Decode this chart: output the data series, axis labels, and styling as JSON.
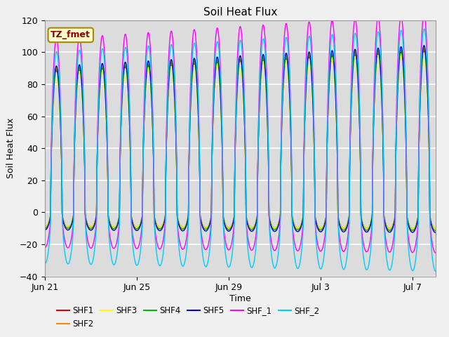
{
  "title": "Soil Heat Flux",
  "xlabel": "Time",
  "ylabel": "Soil Heat Flux",
  "annotation_text": "TZ_fmet",
  "ylim": [
    -40,
    120
  ],
  "fig_bg_color": "#f0f0f0",
  "plot_bg_color": "#dcdcdc",
  "grid_color": "white",
  "series": [
    {
      "name": "SHF1",
      "color": "#dd0000",
      "day_amp": 88,
      "night_amp": 9,
      "phase": 0.0
    },
    {
      "name": "SHF2",
      "color": "#ff8800",
      "day_amp": 90,
      "night_amp": 10,
      "phase": 0.01
    },
    {
      "name": "SHF3",
      "color": "#ffff00",
      "day_amp": 87,
      "night_amp": 9,
      "phase": 0.02
    },
    {
      "name": "SHF4",
      "color": "#00bb00",
      "day_amp": 89,
      "night_amp": 10,
      "phase": 0.015
    },
    {
      "name": "SHF5",
      "color": "#0000cc",
      "day_amp": 91,
      "night_amp": 11,
      "phase": 0.005
    },
    {
      "name": "SHF_1",
      "color": "#ff00ff",
      "day_amp": 108,
      "night_amp": 22,
      "phase": 0.0
    },
    {
      "name": "SHF_2",
      "color": "#00ccff",
      "day_amp": 100,
      "night_amp": 32,
      "phase": -0.03
    }
  ],
  "tick_labels": [
    "Jun 21",
    "Jun 25",
    "Jun 29",
    "Jul 3",
    "Jul 7"
  ],
  "tick_positions_days": [
    0,
    4,
    8,
    12,
    16
  ],
  "total_days": 17,
  "yticks": [
    -40,
    -20,
    0,
    20,
    40,
    60,
    80,
    100,
    120
  ],
  "legend_ncol": 6
}
